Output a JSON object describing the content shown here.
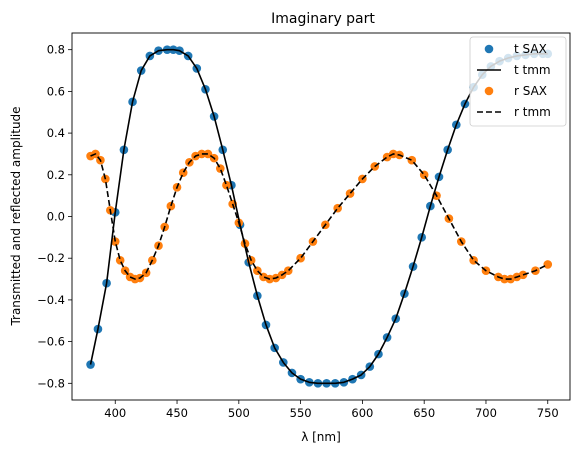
{
  "chart_data": {
    "type": "scatter",
    "title": "Imaginary part",
    "xlabel": "λ [nm]",
    "ylabel": "Transmitted and reflected amplitude",
    "xlim": [
      365,
      768
    ],
    "ylim": [
      -0.88,
      0.88
    ],
    "x_ticks": [
      400,
      450,
      500,
      550,
      600,
      650,
      700,
      750
    ],
    "y_ticks": [
      -0.8,
      -0.6,
      -0.4,
      -0.2,
      0.0,
      0.2,
      0.4,
      0.6,
      0.8
    ],
    "x_tick_labels": [
      "400",
      "450",
      "500",
      "550",
      "600",
      "650",
      "700",
      "750"
    ],
    "y_tick_labels": [
      "−0.8",
      "−0.6",
      "−0.4",
      "−0.2",
      "0.0",
      "0.2",
      "0.4",
      "0.6",
      "0.8"
    ],
    "grid": false,
    "legend_position": "top-right",
    "series": [
      {
        "name": "t SAX",
        "style": "markers",
        "color": "#1f77b4",
        "x": [
          380,
          386,
          393,
          400,
          407,
          414,
          421,
          428,
          435,
          442,
          447,
          452,
          459,
          466,
          473,
          480,
          487,
          494,
          501,
          508,
          515,
          522,
          529,
          536,
          543,
          550,
          557,
          564,
          571,
          578,
          585,
          592,
          599,
          606,
          613,
          620,
          627,
          634,
          641,
          648,
          655,
          662,
          669,
          676,
          683,
          690,
          697,
          704,
          711,
          718,
          725,
          732,
          739,
          746,
          750
        ],
        "y": [
          -0.71,
          -0.54,
          -0.32,
          0.02,
          0.32,
          0.55,
          0.7,
          0.77,
          0.795,
          0.8,
          0.8,
          0.795,
          0.77,
          0.71,
          0.61,
          0.48,
          0.32,
          0.15,
          -0.04,
          -0.22,
          -0.38,
          -0.52,
          -0.63,
          -0.7,
          -0.75,
          -0.78,
          -0.795,
          -0.8,
          -0.8,
          -0.8,
          -0.795,
          -0.78,
          -0.76,
          -0.72,
          -0.66,
          -0.58,
          -0.49,
          -0.37,
          -0.24,
          -0.1,
          0.05,
          0.19,
          0.32,
          0.44,
          0.54,
          0.62,
          0.68,
          0.72,
          0.745,
          0.76,
          0.77,
          0.775,
          0.78,
          0.78,
          0.78
        ]
      },
      {
        "name": "t tmm",
        "style": "solid",
        "color": "#000000",
        "x": [
          380,
          386,
          393,
          400,
          407,
          414,
          421,
          428,
          435,
          442,
          447,
          452,
          459,
          466,
          473,
          480,
          487,
          494,
          501,
          508,
          515,
          522,
          529,
          536,
          543,
          550,
          557,
          564,
          571,
          578,
          585,
          592,
          599,
          606,
          613,
          620,
          627,
          634,
          641,
          648,
          655,
          662,
          669,
          676,
          683,
          690,
          697,
          704,
          711,
          718,
          725,
          732,
          739,
          746,
          750
        ],
        "y": [
          -0.71,
          -0.54,
          -0.32,
          0.02,
          0.32,
          0.55,
          0.7,
          0.77,
          0.795,
          0.8,
          0.8,
          0.795,
          0.77,
          0.71,
          0.61,
          0.48,
          0.32,
          0.15,
          -0.04,
          -0.22,
          -0.38,
          -0.52,
          -0.63,
          -0.7,
          -0.75,
          -0.78,
          -0.795,
          -0.8,
          -0.8,
          -0.8,
          -0.795,
          -0.78,
          -0.76,
          -0.72,
          -0.66,
          -0.58,
          -0.49,
          -0.37,
          -0.24,
          -0.1,
          0.05,
          0.19,
          0.32,
          0.44,
          0.54,
          0.62,
          0.68,
          0.72,
          0.745,
          0.76,
          0.77,
          0.775,
          0.78,
          0.78,
          0.78
        ]
      },
      {
        "name": "r SAX",
        "style": "markers",
        "color": "#ff7f0e",
        "x": [
          380,
          384,
          388,
          392,
          396,
          400,
          404,
          408,
          412,
          416,
          420,
          425,
          430,
          435,
          440,
          445,
          450,
          455,
          460,
          465,
          470,
          475,
          480,
          485,
          490,
          495,
          500,
          505,
          510,
          515,
          520,
          525,
          530,
          535,
          540,
          550,
          560,
          570,
          580,
          590,
          600,
          610,
          620,
          625,
          630,
          640,
          650,
          660,
          670,
          680,
          690,
          700,
          710,
          715,
          720,
          725,
          730,
          740,
          750
        ],
        "y": [
          0.29,
          0.3,
          0.27,
          0.18,
          0.03,
          -0.12,
          -0.21,
          -0.26,
          -0.29,
          -0.3,
          -0.295,
          -0.27,
          -0.21,
          -0.14,
          -0.05,
          0.05,
          0.14,
          0.21,
          0.26,
          0.29,
          0.3,
          0.3,
          0.28,
          0.23,
          0.15,
          0.06,
          -0.03,
          -0.13,
          -0.21,
          -0.26,
          -0.29,
          -0.3,
          -0.295,
          -0.28,
          -0.26,
          -0.2,
          -0.12,
          -0.04,
          0.04,
          0.11,
          0.18,
          0.24,
          0.285,
          0.3,
          0.295,
          0.27,
          0.2,
          0.1,
          -0.01,
          -0.12,
          -0.21,
          -0.26,
          -0.29,
          -0.3,
          -0.3,
          -0.29,
          -0.28,
          -0.26,
          -0.23
        ]
      },
      {
        "name": "r tmm",
        "style": "dashed",
        "color": "#000000",
        "x": [
          380,
          384,
          388,
          392,
          396,
          400,
          404,
          408,
          412,
          416,
          420,
          425,
          430,
          435,
          440,
          445,
          450,
          455,
          460,
          465,
          470,
          475,
          480,
          485,
          490,
          495,
          500,
          505,
          510,
          515,
          520,
          525,
          530,
          535,
          540,
          550,
          560,
          570,
          580,
          590,
          600,
          610,
          620,
          625,
          630,
          640,
          650,
          660,
          670,
          680,
          690,
          700,
          710,
          715,
          720,
          725,
          730,
          740,
          750
        ],
        "y": [
          0.29,
          0.3,
          0.27,
          0.18,
          0.03,
          -0.12,
          -0.21,
          -0.26,
          -0.29,
          -0.3,
          -0.295,
          -0.27,
          -0.21,
          -0.14,
          -0.05,
          0.05,
          0.14,
          0.21,
          0.26,
          0.29,
          0.3,
          0.3,
          0.28,
          0.23,
          0.15,
          0.06,
          -0.03,
          -0.13,
          -0.21,
          -0.26,
          -0.29,
          -0.3,
          -0.295,
          -0.28,
          -0.26,
          -0.2,
          -0.12,
          -0.04,
          0.04,
          0.11,
          0.18,
          0.24,
          0.285,
          0.3,
          0.295,
          0.27,
          0.2,
          0.1,
          -0.01,
          -0.12,
          -0.21,
          -0.26,
          -0.29,
          -0.3,
          -0.3,
          -0.29,
          -0.28,
          -0.26,
          -0.23
        ]
      }
    ]
  }
}
